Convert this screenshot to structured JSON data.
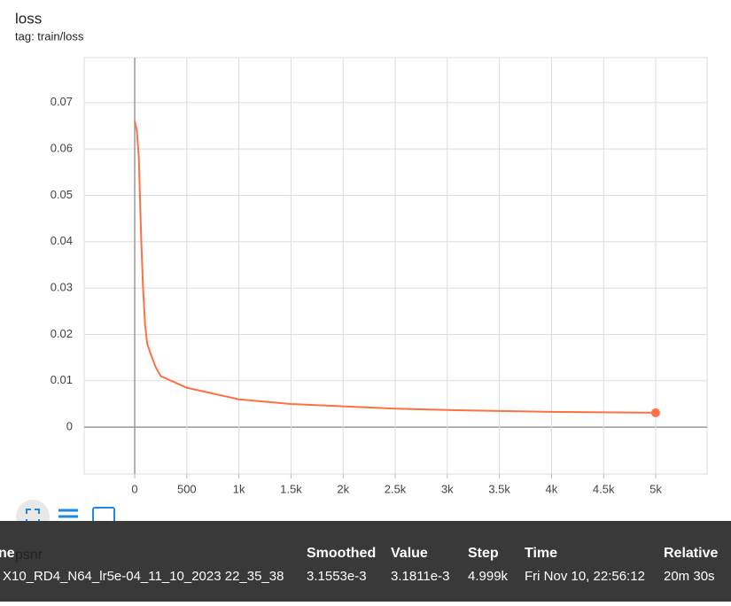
{
  "chart_data": {
    "type": "line",
    "title": "loss",
    "subtitle": "tag: train/loss",
    "x": [
      0,
      20,
      40,
      60,
      80,
      100,
      120,
      150,
      200,
      250,
      300,
      400,
      500,
      600,
      800,
      1000,
      1500,
      2000,
      2500,
      3000,
      3500,
      4000,
      4500,
      4999
    ],
    "values": [
      0.066,
      0.064,
      0.058,
      0.042,
      0.03,
      0.022,
      0.018,
      0.016,
      0.013,
      0.011,
      0.0105,
      0.0095,
      0.0085,
      0.008,
      0.007,
      0.006,
      0.005,
      0.0045,
      0.004,
      0.0037,
      0.0035,
      0.0033,
      0.0032,
      0.0031
    ],
    "color": "#ff7043",
    "xlim": [
      -485,
      5493
    ],
    "ylim": [
      -0.0101,
      0.0797
    ],
    "xticks": [
      0,
      500,
      {
        "value": 1000,
        "label": "1k"
      },
      {
        "value": 1500,
        "label": "1.5k"
      },
      {
        "value": 2000,
        "label": "2k"
      },
      {
        "value": 2500,
        "label": "2.5k"
      },
      {
        "value": 3000,
        "label": "3k"
      },
      {
        "value": 3500,
        "label": "3.5k"
      },
      {
        "value": 4000,
        "label": "4k"
      },
      {
        "value": 4500,
        "label": "4.5k"
      },
      {
        "value": 5000,
        "label": "5k"
      }
    ],
    "yticks": [
      0,
      0.01,
      0.02,
      0.03,
      0.04,
      0.05,
      0.06,
      0.07
    ],
    "grid": true
  },
  "next_card_title": "psnr",
  "tooltip": {
    "headers": [
      "ne",
      "Smoothed",
      "Value",
      "Step",
      "Time",
      "Relative"
    ],
    "row": [
      "X10_RD4_N64_lr5e-04_11_10_2023 22_35_38",
      "3.1553e-3",
      "3.1811e-3",
      "4.999k",
      "Fri Nov 10, 22:56:12",
      "20m 30s"
    ]
  }
}
